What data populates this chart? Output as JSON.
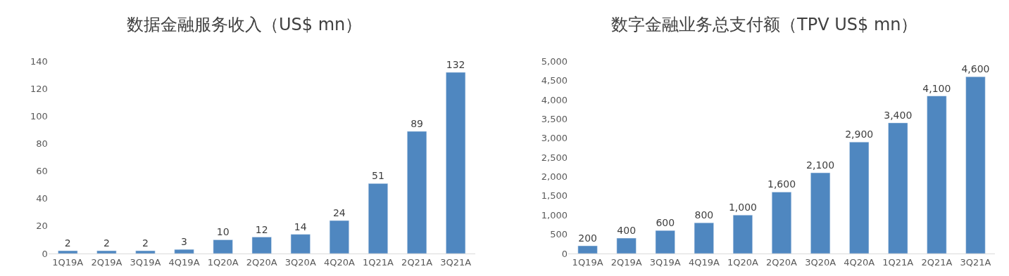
{
  "chart_data": [
    {
      "type": "bar",
      "title": "数据金融服务收入（US$ mn）",
      "categories": [
        "1Q19A",
        "2Q19A",
        "3Q19A",
        "4Q19A",
        "1Q20A",
        "2Q20A",
        "3Q20A",
        "4Q20A",
        "1Q21A",
        "2Q21A",
        "3Q21A"
      ],
      "values": [
        2,
        2,
        2,
        3,
        10,
        12,
        14,
        24,
        51,
        89,
        132
      ],
      "color": "#4f87c0",
      "ylim": [
        0,
        140
      ],
      "yticks": [
        0,
        20,
        40,
        60,
        80,
        100,
        120,
        140
      ],
      "data_labels": true
    },
    {
      "type": "bar",
      "title": "数字金融业务总支付额（TPV US$ mn）",
      "categories": [
        "1Q19A",
        "2Q19A",
        "3Q19A",
        "4Q19A",
        "1Q20A",
        "2Q20A",
        "3Q20A",
        "4Q20A",
        "1Q21A",
        "2Q21A",
        "3Q21A"
      ],
      "values": [
        200,
        400,
        600,
        800,
        1000,
        1600,
        2100,
        2900,
        3400,
        4100,
        4600
      ],
      "color": "#4f87c0",
      "value_labels": [
        "200",
        "400",
        "600",
        "800",
        "1,000",
        "1,600",
        "2,100",
        "2,900",
        "3,400",
        "4,100",
        "4,600"
      ],
      "ylim": [
        0,
        5000
      ],
      "yticks": [
        {
          "value": 0,
          "label": "0"
        },
        {
          "value": 500,
          "label": "500"
        },
        {
          "value": 1000,
          "label": "1,000"
        },
        {
          "value": 1500,
          "label": "1,500"
        },
        {
          "value": 2000,
          "label": "2,000"
        },
        {
          "value": 2500,
          "label": "2,500"
        },
        {
          "value": 3000,
          "label": "3,000"
        },
        {
          "value": 3500,
          "label": "3,500"
        },
        {
          "value": 4000,
          "label": "4,000"
        },
        {
          "value": 4500,
          "label": "4,500"
        },
        {
          "value": 5000,
          "label": "5,000"
        }
      ]
    }
  ]
}
